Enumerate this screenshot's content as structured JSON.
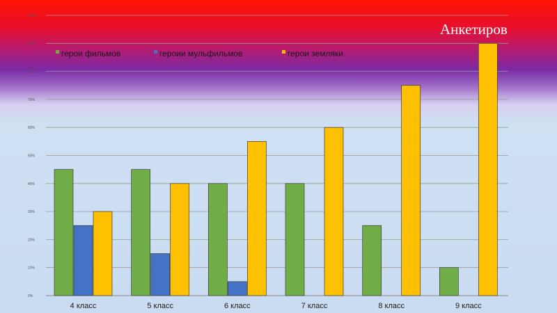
{
  "slide": {
    "title": "Анкетиров"
  },
  "chart_data": {
    "type": "bar",
    "categories": [
      "4 класс",
      "5 класс",
      "6 класс",
      "7 класс",
      "8 класс",
      "9 класс"
    ],
    "series": [
      {
        "name": "герои фильмов",
        "color": "#70ad47",
        "values": [
          45,
          45,
          40,
          40,
          25,
          10
        ]
      },
      {
        "name": "героии мульфильмов",
        "color": "#4472c4",
        "values": [
          25,
          15,
          5,
          0,
          0,
          0
        ]
      },
      {
        "name": "герои земляки",
        "color": "#ffc000",
        "values": [
          30,
          40,
          55,
          60,
          75,
          90
        ]
      }
    ],
    "ylim": [
      0,
      100
    ],
    "yticks": [
      "0%",
      "10%",
      "20%",
      "30%",
      "40%",
      "50%",
      "60%",
      "70%",
      "80%",
      "90%",
      "100%"
    ],
    "grid": true,
    "legend_position": "top-left"
  }
}
